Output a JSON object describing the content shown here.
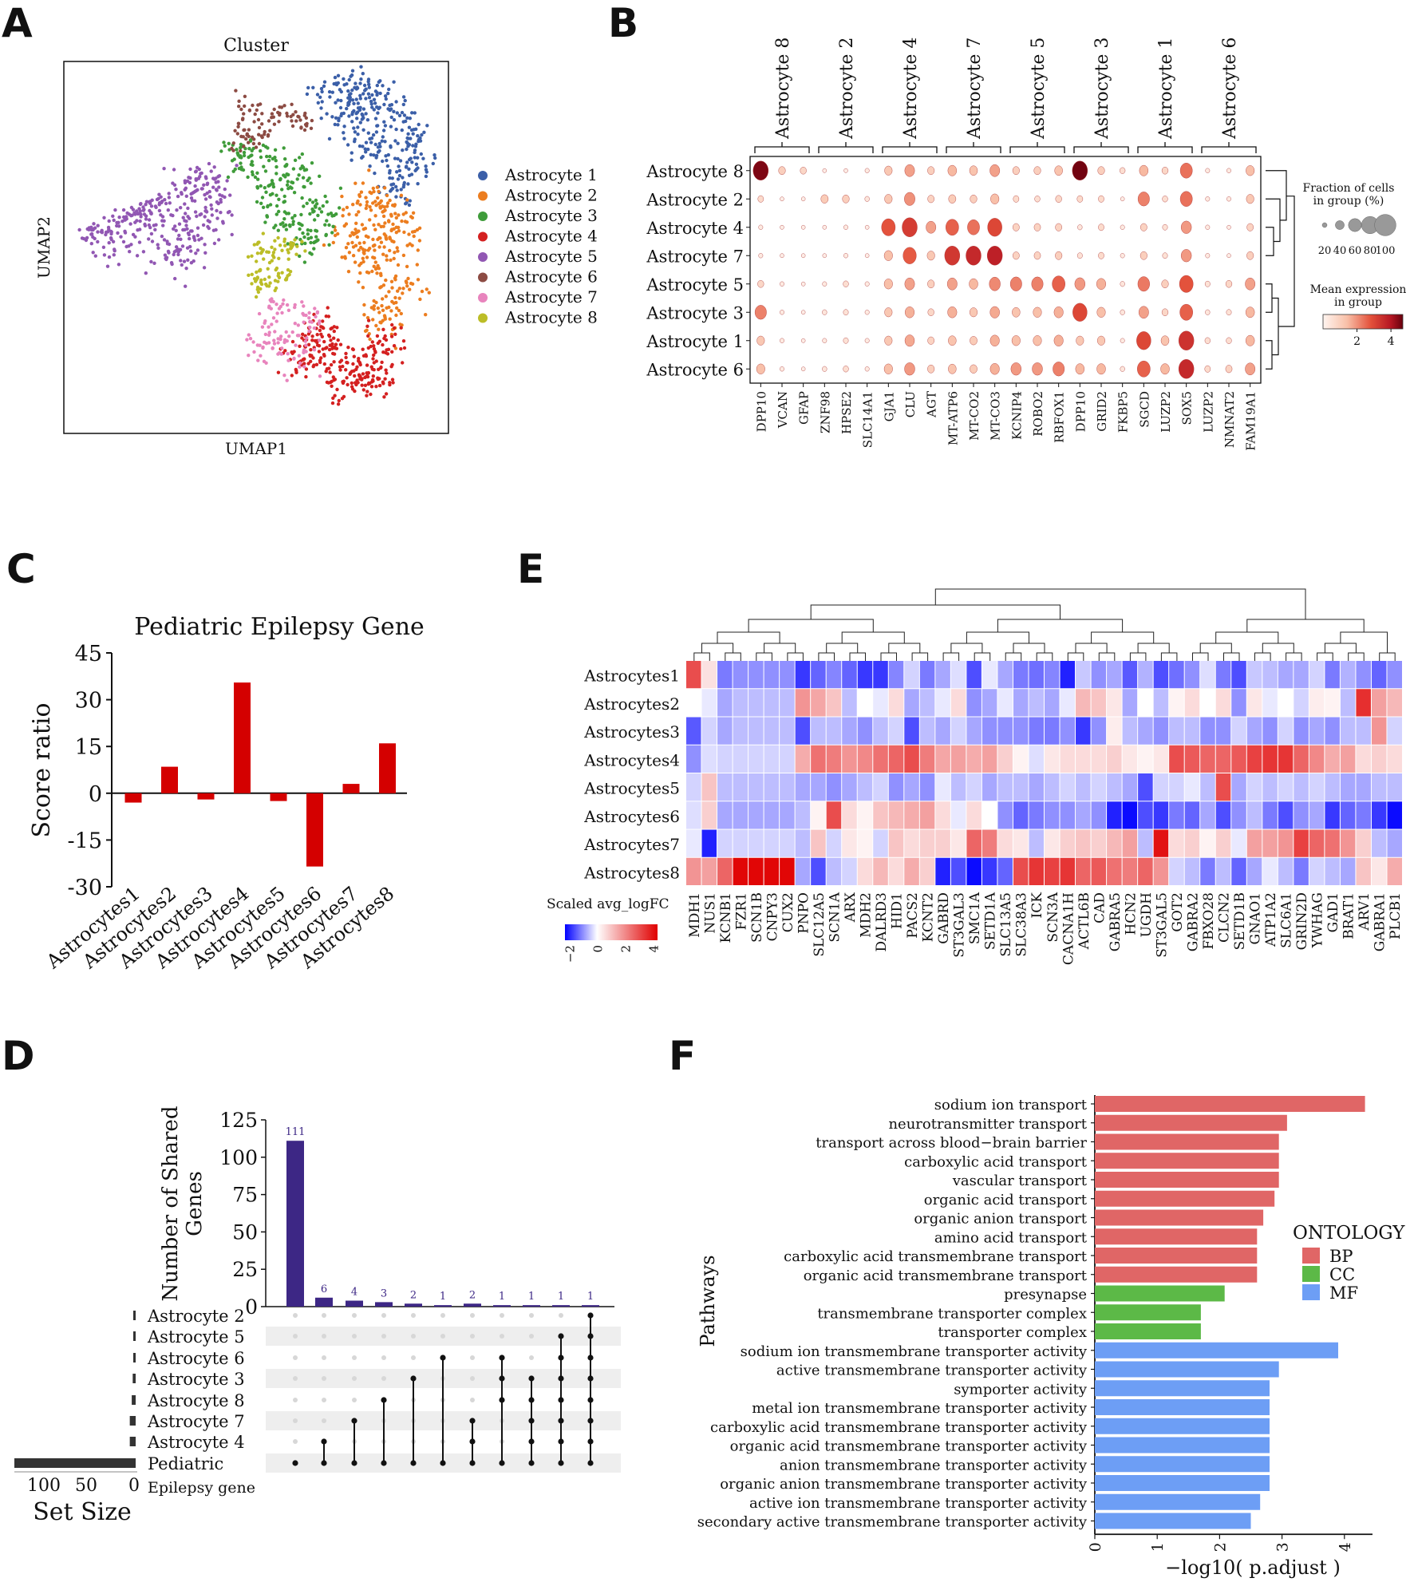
{
  "panels": {
    "a": "A",
    "b": "B",
    "c": "C",
    "d": "D",
    "e": "E",
    "f": "F"
  },
  "chart_data": [
    {
      "id": "A",
      "type": "scatter",
      "title": "Cluster",
      "xlabel": "UMAP1",
      "ylabel": "UMAP2",
      "legend": [
        {
          "name": "Astrocyte 1",
          "color": "#3b5fa8"
        },
        {
          "name": "Astrocyte 2",
          "color": "#ec7d1f"
        },
        {
          "name": "Astrocyte 3",
          "color": "#3f9c3a"
        },
        {
          "name": "Astrocyte 4",
          "color": "#d42020"
        },
        {
          "name": "Astrocyte 5",
          "color": "#9157b3"
        },
        {
          "name": "Astrocyte 6",
          "color": "#8c4b43"
        },
        {
          "name": "Astrocyte 7",
          "color": "#e884bd"
        },
        {
          "name": "Astrocyte 8",
          "color": "#bcbd27"
        }
      ],
      "legend_position": "right"
    },
    {
      "id": "B",
      "type": "dotplot",
      "groups": [
        "Astrocyte 8",
        "Astrocyte 2",
        "Astrocyte 4",
        "Astrocyte 7",
        "Astrocyte 5",
        "Astrocyte 3",
        "Astrocyte 1",
        "Astrocyte 6"
      ],
      "rows": [
        "Astrocyte 8",
        "Astrocyte 2",
        "Astrocyte 4",
        "Astrocyte 7",
        "Astrocyte 5",
        "Astrocyte 3",
        "Astrocyte 1",
        "Astrocyte 6"
      ],
      "genes": [
        "DPP10",
        "VCAN",
        "GFAP",
        "ZNF98",
        "HPSE2",
        "SLC14A1",
        "GJA1",
        "CLU",
        "AGT",
        "MT-ATP6",
        "MT-CO2",
        "MT-CO3",
        "KCNIP4",
        "ROBO2",
        "RBFOX1",
        "DPP10",
        "GRID2",
        "FKBP5",
        "SGCD",
        "LUZP2",
        "SOX5",
        "LUZP2",
        "NMNAT2",
        "FAM19A1"
      ],
      "expression": [
        [
          4.5,
          1.0,
          0.8,
          0.2,
          0.2,
          0.3,
          1.2,
          1.8,
          1.0,
          1.5,
          1.3,
          1.8,
          1.0,
          1.0,
          1.3,
          4.6,
          1.0,
          0.6,
          1.5,
          0.8,
          2.4,
          0.3,
          0.3,
          1.4
        ],
        [
          0.7,
          0.2,
          0.2,
          1.1,
          1.0,
          0.4,
          1.2,
          2.0,
          0.9,
          1.1,
          1.0,
          1.4,
          0.7,
          0.6,
          0.8,
          0.7,
          0.7,
          0.2,
          2.2,
          0.6,
          2.4,
          0.3,
          0.3,
          1.2
        ],
        [
          0.3,
          0.2,
          0.2,
          0.2,
          0.3,
          0.2,
          2.8,
          3.2,
          1.8,
          2.6,
          2.4,
          3.0,
          0.9,
          0.9,
          0.9,
          0.4,
          0.7,
          0.3,
          0.9,
          0.5,
          1.9,
          0.3,
          0.2,
          0.9
        ],
        [
          0.3,
          0.2,
          0.2,
          0.2,
          0.3,
          0.2,
          1.4,
          2.7,
          1.2,
          3.3,
          3.6,
          3.8,
          0.9,
          0.9,
          1.0,
          0.5,
          0.7,
          0.3,
          1.0,
          0.5,
          1.9,
          0.3,
          0.2,
          1.0
        ],
        [
          0.8,
          0.3,
          0.2,
          0.3,
          0.6,
          0.3,
          1.4,
          1.8,
          1.0,
          1.8,
          1.5,
          2.1,
          2.2,
          2.2,
          2.6,
          1.9,
          1.6,
          0.4,
          2.3,
          1.0,
          2.8,
          0.5,
          0.8,
          1.8
        ],
        [
          2.2,
          0.3,
          0.2,
          0.4,
          0.5,
          0.3,
          1.2,
          1.6,
          0.8,
          1.6,
          1.2,
          1.7,
          1.3,
          1.4,
          1.6,
          3.0,
          1.4,
          0.4,
          1.8,
          0.8,
          2.6,
          0.4,
          0.5,
          1.5
        ],
        [
          1.2,
          0.3,
          0.2,
          0.3,
          0.5,
          0.3,
          1.2,
          1.7,
          0.9,
          1.3,
          1.1,
          1.6,
          1.4,
          1.4,
          1.6,
          1.2,
          1.2,
          0.3,
          3.0,
          1.3,
          3.4,
          0.6,
          0.6,
          1.5
        ],
        [
          1.4,
          0.3,
          0.2,
          0.4,
          0.6,
          0.3,
          1.4,
          1.9,
          1.0,
          1.3,
          1.1,
          1.6,
          1.9,
          1.9,
          2.2,
          1.5,
          1.5,
          0.4,
          2.6,
          1.5,
          3.6,
          0.7,
          0.9,
          1.8
        ]
      ],
      "fraction_range": [
        20,
        100
      ],
      "size_legend_title": "Fraction of cells\nin group (%)",
      "size_legend_ticks": [
        "20",
        "40",
        "60",
        "80",
        "100"
      ],
      "color_legend_title": "Mean expression\nin group",
      "color_legend_ticks": [
        "2",
        "4"
      ],
      "color_range": [
        0,
        4.7
      ]
    },
    {
      "id": "C",
      "type": "bar",
      "title": "Pediatric Epilepsy Gene",
      "ylabel": "Score ratio",
      "categories": [
        "Astrocytes1",
        "Astrocytes2",
        "Astrocytes3",
        "Astrocytes4",
        "Astrocytes5",
        "Astrocytes6",
        "Astrocytes7",
        "Astrocytes8"
      ],
      "values": [
        -3,
        8.5,
        -2,
        35.5,
        -2.5,
        -23.5,
        3,
        16
      ],
      "ylim": [
        -30,
        45
      ],
      "yticks": [
        -30,
        -15,
        0,
        15,
        30,
        45
      ],
      "ytick_labels": [
        "-30",
        "-15",
        "0",
        "15",
        "30",
        "45"
      ],
      "color": "#d40000"
    },
    {
      "id": "D",
      "type": "upset",
      "ylabel": "Number of Shared\nGenes",
      "ylim": [
        0,
        125
      ],
      "yticks": [
        0,
        25,
        50,
        75,
        100,
        125
      ],
      "ytick_labels": [
        "0",
        "25",
        "50",
        "75",
        "100",
        "125"
      ],
      "intersection_values": [
        111,
        6,
        4,
        3,
        2,
        1,
        2,
        1,
        1,
        1,
        1
      ],
      "value_labels": [
        "111",
        "6",
        "4",
        "3",
        "2",
        "1",
        "2",
        "1",
        "1",
        "1",
        "1"
      ],
      "sets": [
        "Astrocyte 2",
        "Astrocyte 5",
        "Astrocyte 6",
        "Astrocyte 3",
        "Astrocyte 8",
        "Astrocyte 7",
        "Astrocyte 4",
        "Pediatric\nEpilepsy gene"
      ],
      "set_sizes": [
        1,
        1,
        1,
        3,
        4,
        6,
        6,
        124
      ],
      "memberships": [
        [
          7
        ],
        [
          6,
          7
        ],
        [
          5,
          7
        ],
        [
          4,
          7
        ],
        [
          3,
          7
        ],
        [
          2,
          7
        ],
        [
          5,
          6,
          7
        ],
        [
          2,
          3,
          4,
          7
        ],
        [
          3,
          4,
          5,
          6,
          7
        ],
        [
          1,
          2,
          3,
          4,
          5,
          6,
          7
        ],
        [
          0,
          1,
          2,
          3,
          4,
          5,
          6,
          7
        ]
      ],
      "set_size_label": "Set Size",
      "set_size_ticks": [
        "100",
        "50",
        "0"
      ],
      "bar_color": "#3d2785"
    },
    {
      "id": "E",
      "type": "heatmap",
      "rows": [
        "Astrocytes1",
        "Astrocytes2",
        "Astrocytes3",
        "Astrocytes4",
        "Astrocytes5",
        "Astrocytes6",
        "Astrocytes7",
        "Astrocytes8"
      ],
      "columns": [
        "MDH1",
        "NUS1",
        "KCNB1",
        "FZR1",
        "SCN1B",
        "CNPY3",
        "CUX2",
        "PNPO",
        "SLC12A5",
        "SCN1A",
        "ARX",
        "MDH2",
        "DALRD3",
        "HID1",
        "PACS2",
        "KCNT2",
        "GABRD",
        "ST3GAL3",
        "SMC1A",
        "SETD1A",
        "SLC13A5",
        "SLC38A3",
        "ICK",
        "SCN3A",
        "CACNA1H",
        "ACTL6B",
        "CAD",
        "GABRA5",
        "HCN2",
        "UGDH",
        "ST3GAL5",
        "GOT2",
        "GABRA2",
        "FBXO28",
        "CLCN2",
        "SETD1B",
        "GNAO1",
        "ATP1A2",
        "SLC6A1",
        "GRIN2D",
        "YWHAG",
        "GAD1",
        "BRAT1",
        "ARV1",
        "GABRA1",
        "PLCB1"
      ],
      "values": [
        [
          3.0,
          0.5,
          -1.2,
          -1.0,
          -1.0,
          -1.0,
          -1.0,
          -1.8,
          -1.4,
          -1.1,
          -1.4,
          -1.8,
          -1.8,
          -1.1,
          -0.4,
          -1.2,
          -0.8,
          -0.3,
          -1.6,
          -0.2,
          -0.8,
          -1.2,
          -1.3,
          -1.1,
          -2.0,
          -0.5,
          -1.0,
          -0.8,
          -1.5,
          -0.7,
          -1.6,
          -1.3,
          -1.0,
          -0.3,
          -1.2,
          -1.6,
          -0.5,
          -0.6,
          -0.8,
          -0.8,
          -0.4,
          -1.2,
          -0.7,
          -1.0,
          -1.4,
          -1.0
        ],
        [
          0.0,
          -0.2,
          -0.8,
          -0.6,
          -0.6,
          -0.6,
          -0.6,
          1.8,
          1.5,
          1.0,
          -0.6,
          0.0,
          -0.2,
          0.6,
          -0.8,
          -0.6,
          -0.2,
          0.6,
          -1.0,
          -0.8,
          -0.2,
          -0.8,
          -0.6,
          -0.8,
          -0.2,
          1.2,
          1.0,
          0.4,
          -0.8,
          0.0,
          -0.6,
          0.2,
          0.6,
          0.0,
          0.6,
          -1.0,
          0.4,
          -0.2,
          0.0,
          -0.4,
          0.3,
          0.2,
          -0.6,
          3.5,
          1.6,
          1.2
        ],
        [
          -1.5,
          -0.4,
          -0.8,
          -0.6,
          -0.6,
          -0.6,
          -0.6,
          -1.6,
          -0.6,
          -0.6,
          -0.8,
          -1.0,
          -0.6,
          -0.4,
          -1.6,
          -0.6,
          -0.8,
          -0.4,
          -0.8,
          -1.0,
          -1.0,
          -1.0,
          -1.2,
          -1.2,
          -1.0,
          -1.8,
          -1.0,
          0.3,
          -0.6,
          -0.8,
          -1.0,
          -0.6,
          -0.6,
          -1.0,
          -1.0,
          -0.4,
          -0.8,
          -1.0,
          -0.4,
          -1.0,
          -0.8,
          -1.0,
          -0.6,
          -0.6,
          1.8,
          -0.4
        ],
        [
          -1.0,
          -0.3,
          -0.4,
          -0.4,
          -0.4,
          -0.4,
          -0.4,
          1.4,
          2.4,
          2.2,
          1.8,
          2.0,
          2.4,
          2.6,
          3.0,
          2.2,
          1.5,
          1.6,
          1.4,
          1.6,
          0.8,
          0.2,
          -0.3,
          0.4,
          0.6,
          0.6,
          0.6,
          0.8,
          0.4,
          0.2,
          0.4,
          3.0,
          2.8,
          2.6,
          2.6,
          2.8,
          3.2,
          3.4,
          3.4,
          2.6,
          2.0,
          1.4,
          1.6,
          0.6,
          0.8,
          0.6
        ],
        [
          -0.4,
          1.0,
          -0.6,
          -0.6,
          -0.6,
          -0.6,
          -0.6,
          -0.8,
          -0.8,
          -1.0,
          -0.8,
          -0.6,
          -0.4,
          -1.0,
          -0.8,
          -1.0,
          -0.2,
          -0.6,
          -0.4,
          -0.8,
          -0.6,
          -0.6,
          -0.8,
          -0.6,
          -0.4,
          -0.6,
          -0.4,
          -0.6,
          -0.8,
          -1.6,
          -0.4,
          -0.4,
          -0.2,
          -0.6,
          3.0,
          -0.8,
          -0.4,
          -0.6,
          -0.4,
          -0.6,
          -0.4,
          -0.6,
          -0.8,
          -0.8,
          -0.6,
          -0.6
        ],
        [
          -0.3,
          0.8,
          -0.8,
          -0.8,
          -0.8,
          -0.8,
          -0.8,
          -0.6,
          0.2,
          3.0,
          0.6,
          0.2,
          1.0,
          1.2,
          1.4,
          1.6,
          0.6,
          -0.2,
          0.6,
          0.0,
          -1.0,
          -1.4,
          -1.2,
          -1.0,
          -1.0,
          -0.8,
          -1.0,
          -2.0,
          -2.2,
          -1.6,
          -1.8,
          -1.2,
          -1.4,
          -0.8,
          -1.6,
          -1.0,
          -0.6,
          -1.2,
          -1.6,
          -1.0,
          -0.8,
          -1.8,
          -1.4,
          -1.2,
          -1.8,
          -2.2
        ],
        [
          -0.2,
          -2.0,
          -0.4,
          -0.4,
          -0.4,
          -0.4,
          -0.4,
          -0.6,
          1.0,
          -0.4,
          0.4,
          0.2,
          -0.4,
          1.0,
          0.6,
          0.8,
          0.8,
          0.4,
          2.6,
          2.2,
          0.6,
          0.4,
          -0.6,
          0.4,
          0.8,
          1.0,
          0.8,
          1.2,
          1.6,
          -0.6,
          4.0,
          0.6,
          0.8,
          0.2,
          0.8,
          -0.2,
          1.6,
          1.6,
          1.8,
          3.2,
          2.6,
          2.4,
          1.8,
          0.8,
          -0.6,
          -0.8
        ],
        [
          1.8,
          1.6,
          2.6,
          4.2,
          4.2,
          4.2,
          4.2,
          -0.8,
          -1.6,
          -0.6,
          -0.4,
          0.6,
          1.2,
          0.6,
          1.4,
          0.8,
          -2.0,
          -1.6,
          -2.2,
          -1.8,
          -1.4,
          3.0,
          3.4,
          3.2,
          3.4,
          2.6,
          2.8,
          2.4,
          2.2,
          2.6,
          1.8,
          -0.4,
          -0.6,
          -1.2,
          -0.6,
          -1.4,
          -0.8,
          -0.2,
          -0.6,
          -1.2,
          -0.4,
          -0.6,
          -0.8,
          1.0,
          0.4,
          1.4
        ]
      ],
      "legend_title": "Scaled avg_logFC",
      "legend_ticks": [
        "−2",
        "0",
        "2",
        "4"
      ],
      "color_range": [
        -2.3,
        4.3
      ]
    },
    {
      "id": "F",
      "type": "bar",
      "orientation": "horizontal",
      "xlabel": "−log10( p.adjust )",
      "ylabel": "Pathways",
      "xticks": [
        0,
        1,
        2,
        3,
        4
      ],
      "xtick_labels": [
        "0",
        "1",
        "2",
        "3",
        "4"
      ],
      "xlim": [
        0,
        4.4
      ],
      "categories": [
        "sodium ion transport",
        "neurotransmitter transport",
        "transport across blood−brain barrier",
        "carboxylic acid transport",
        "vascular transport",
        "organic acid transport",
        "organic anion transport",
        "amino acid transport",
        "carboxylic acid transmembrane transport",
        "organic acid transmembrane transport",
        "presynapse",
        "transmembrane transporter complex",
        "transporter complex",
        "sodium ion transmembrane transporter activity",
        "active transmembrane transporter activity",
        "symporter activity",
        "metal ion transmembrane transporter activity",
        "carboxylic acid transmembrane transporter activity",
        "organic acid transmembrane transporter activity",
        "anion transmembrane transporter activity",
        "organic anion transmembrane transporter activity",
        "active ion transmembrane transporter activity",
        "secondary active transmembrane transporter activity"
      ],
      "values": [
        4.33,
        3.08,
        2.95,
        2.95,
        2.95,
        2.88,
        2.7,
        2.6,
        2.6,
        2.6,
        2.08,
        1.7,
        1.7,
        3.9,
        2.95,
        2.8,
        2.8,
        2.8,
        2.8,
        2.8,
        2.8,
        2.65,
        2.5
      ],
      "groups": [
        "BP",
        "BP",
        "BP",
        "BP",
        "BP",
        "BP",
        "BP",
        "BP",
        "BP",
        "BP",
        "CC",
        "CC",
        "CC",
        "MF",
        "MF",
        "MF",
        "MF",
        "MF",
        "MF",
        "MF",
        "MF",
        "MF",
        "MF"
      ],
      "legend_title": "ONTOLOGY",
      "legend": [
        {
          "name": "BP",
          "color": "#e06666"
        },
        {
          "name": "CC",
          "color": "#5cb947"
        },
        {
          "name": "MF",
          "color": "#6d9ef5"
        }
      ]
    }
  ]
}
